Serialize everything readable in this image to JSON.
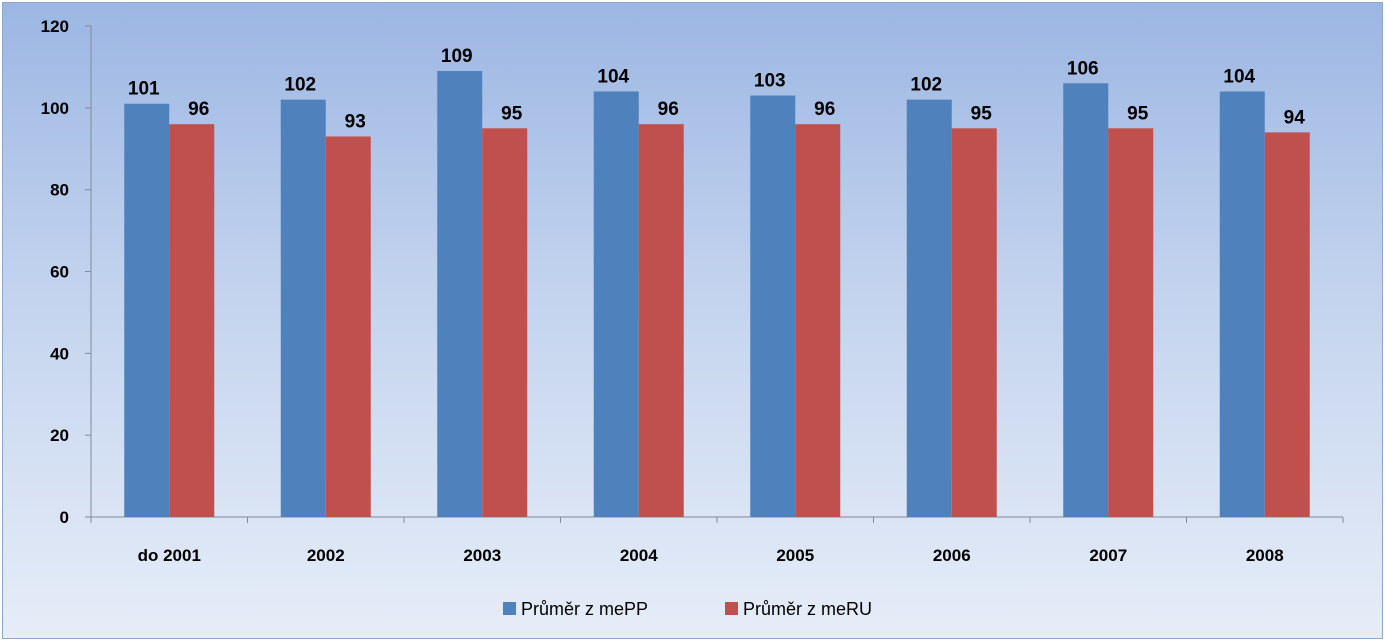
{
  "chart_data": {
    "type": "bar",
    "title": "",
    "xlabel": "",
    "ylabel": "",
    "categories": [
      "do 2001",
      "2002",
      "2003",
      "2004",
      "2005",
      "2006",
      "2007",
      "2008"
    ],
    "series": [
      {
        "name": "Průměr z mePP",
        "color": "#4f81bd",
        "values": [
          101,
          102,
          109,
          104,
          103,
          102,
          106,
          104
        ]
      },
      {
        "name": "Průměr z meRU",
        "color": "#c0504d",
        "values": [
          96,
          93,
          95,
          96,
          96,
          95,
          95,
          94
        ]
      }
    ],
    "ylim": [
      0,
      120
    ],
    "yticks": [
      0,
      20,
      40,
      60,
      80,
      100,
      120
    ],
    "grid": false,
    "legend_position": "bottom"
  }
}
